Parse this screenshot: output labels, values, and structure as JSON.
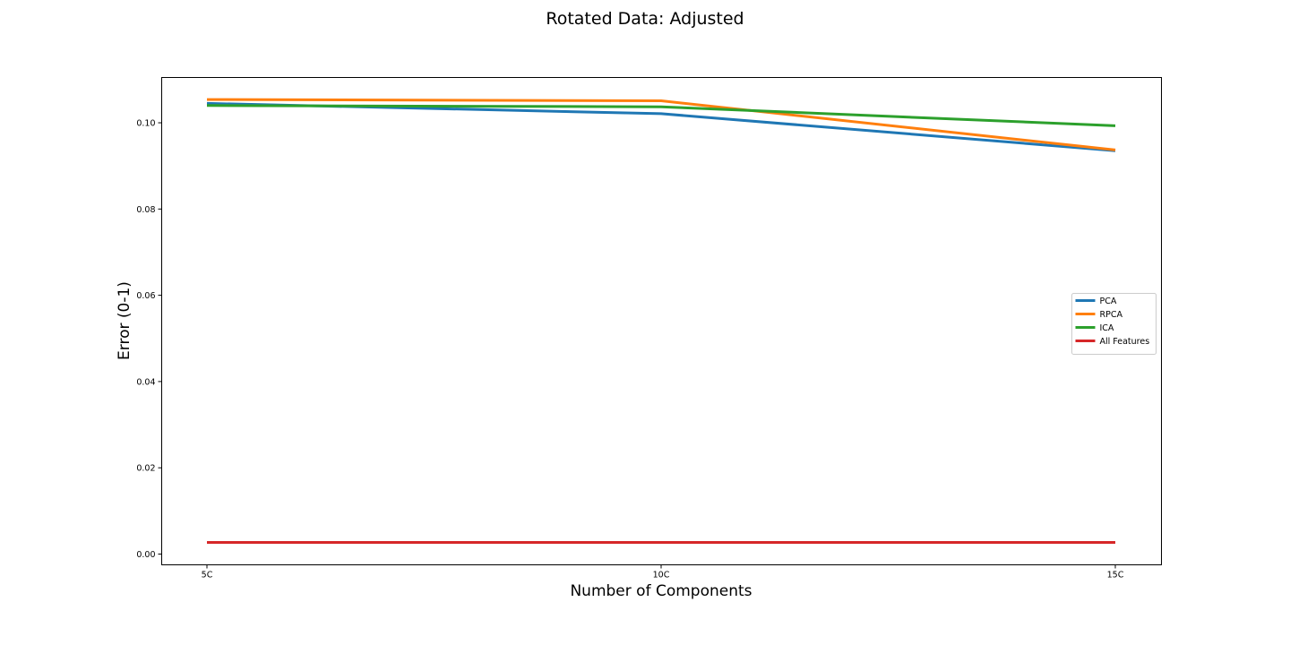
{
  "chart_data": {
    "type": "line",
    "title": "Rotated Data: Adjusted",
    "xlabel": "Number of Components",
    "ylabel": "Error (0-1)",
    "categories": [
      "5C",
      "10C",
      "15C"
    ],
    "ylim": [
      -0.0025,
      0.1105
    ],
    "yticks": [
      0.0,
      0.02,
      0.04,
      0.06,
      0.08,
      0.1
    ],
    "ytick_labels": [
      "0.00",
      "0.02",
      "0.04",
      "0.06",
      "0.08",
      "0.10"
    ],
    "grid": false,
    "legend_position": "center-right",
    "series": [
      {
        "name": "PCA",
        "color": "#1f77b4",
        "values": [
          0.1045,
          0.1021,
          0.0935
        ]
      },
      {
        "name": "RPCA",
        "color": "#ff7f0e",
        "values": [
          0.1054,
          0.1051,
          0.0937
        ]
      },
      {
        "name": "ICA",
        "color": "#2ca02c",
        "values": [
          0.104,
          0.1037,
          0.0993
        ]
      },
      {
        "name": "All Features",
        "color": "#d62728",
        "values": [
          0.0027,
          0.0027,
          0.0027
        ]
      }
    ]
  }
}
